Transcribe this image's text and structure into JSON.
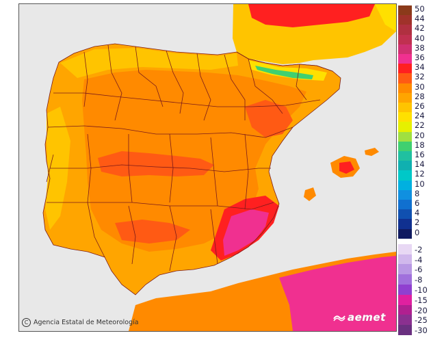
{
  "map": {
    "legend": [
      {
        "label": "50",
        "color": "#8b3a1a"
      },
      {
        "label": "44",
        "color": "#a0322a"
      },
      {
        "label": "42",
        "color": "#b03040"
      },
      {
        "label": "40",
        "color": "#c03050"
      },
      {
        "label": "38",
        "color": "#d03070"
      },
      {
        "label": "36",
        "color": "#f03090"
      },
      {
        "label": "34",
        "color": "#ff2020"
      },
      {
        "label": "32",
        "color": "#ff5a14"
      },
      {
        "label": "30",
        "color": "#ff8a00"
      },
      {
        "label": "28",
        "color": "#ffa500"
      },
      {
        "label": "26",
        "color": "#ffc400"
      },
      {
        "label": "24",
        "color": "#ffe000"
      },
      {
        "label": "22",
        "color": "#e6f000"
      },
      {
        "label": "20",
        "color": "#a0e040"
      },
      {
        "label": "18",
        "color": "#40d070"
      },
      {
        "label": "16",
        "color": "#20c0a0"
      },
      {
        "label": "14",
        "color": "#10b0b0"
      },
      {
        "label": "12",
        "color": "#00c8c8"
      },
      {
        "label": "10",
        "color": "#00b0e0"
      },
      {
        "label": "8",
        "color": "#1090e0"
      },
      {
        "label": "6",
        "color": "#1070d0"
      },
      {
        "label": "4",
        "color": "#1050b0"
      },
      {
        "label": "2",
        "color": "#103090"
      },
      {
        "label": "0",
        "color": "#101a60"
      },
      {
        "label": "-2",
        "color": "#e8d8f4"
      },
      {
        "label": "-4",
        "color": "#d0b8ec"
      },
      {
        "label": "-6",
        "color": "#b898e4"
      },
      {
        "label": "-8",
        "color": "#a070dc"
      },
      {
        "label": "-10",
        "color": "#9040d0"
      },
      {
        "label": "-15",
        "color": "#e020a0"
      },
      {
        "label": "-20",
        "color": "#b02090"
      },
      {
        "label": "-25",
        "color": "#8a3090"
      },
      {
        "label": "-30",
        "color": "#6a3080"
      }
    ],
    "colors": {
      "sea": "#e8e8e8",
      "land_base": "#ffa500",
      "interior": "#ff8a00",
      "hot": "#ff5a14",
      "very_hot": "#ff2020",
      "extreme": "#f03090",
      "mild": "#ffc400",
      "cool": "#ffe000",
      "mountain": "#40d070",
      "border": "#7a1a1a"
    }
  },
  "credit": {
    "icon_glyph": "C",
    "text": "Agencia Estatal de Meteorología"
  },
  "brand": {
    "name": "aemet"
  }
}
